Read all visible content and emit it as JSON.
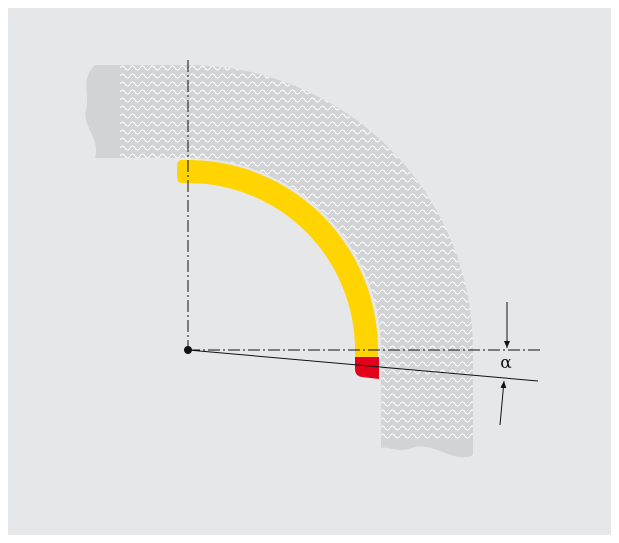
{
  "label": "α"
}
